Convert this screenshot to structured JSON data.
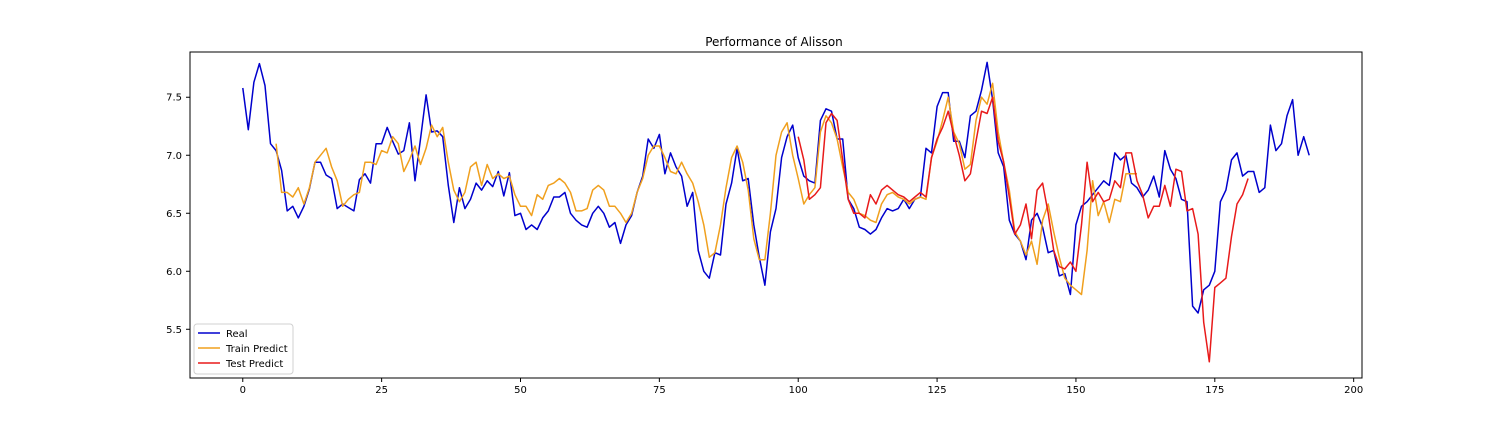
{
  "chart_data": {
    "type": "line",
    "title": "Performance of Alisson",
    "xlabel": "",
    "ylabel": "",
    "xlim": [
      -9.5,
      201.5
    ],
    "ylim": [
      5.08,
      7.89
    ],
    "xticks": [
      0,
      25,
      50,
      75,
      100,
      125,
      150,
      175,
      200
    ],
    "xtick_labels": [
      "0",
      "25",
      "50",
      "75",
      "100",
      "125",
      "150",
      "175",
      "200"
    ],
    "yticks": [
      5.5,
      6.0,
      6.5,
      7.0,
      7.5
    ],
    "ytick_labels": [
      "5.5",
      "6.0",
      "6.5",
      "7.0",
      "7.5"
    ],
    "grid": false,
    "legend_position": "lower-left",
    "series": [
      {
        "name": "Real",
        "color": "#0000cd",
        "x_start": 0,
        "values": [
          7.58,
          7.22,
          7.63,
          7.79,
          7.6,
          7.1,
          7.04,
          6.87,
          6.52,
          6.56,
          6.46,
          6.56,
          6.71,
          6.94,
          6.94,
          6.83,
          6.8,
          6.54,
          6.58,
          6.55,
          6.52,
          6.79,
          6.84,
          6.76,
          7.1,
          7.1,
          7.24,
          7.12,
          7.01,
          7.04,
          7.28,
          6.78,
          7.14,
          7.52,
          7.2,
          7.21,
          7.16,
          6.74,
          6.42,
          6.72,
          6.54,
          6.62,
          6.76,
          6.7,
          6.78,
          6.73,
          6.86,
          6.65,
          6.85,
          6.48,
          6.5,
          6.36,
          6.4,
          6.36,
          6.46,
          6.52,
          6.64,
          6.64,
          6.68,
          6.5,
          6.44,
          6.4,
          6.38,
          6.5,
          6.56,
          6.5,
          6.38,
          6.42,
          6.24,
          6.4,
          6.48,
          6.68,
          6.82,
          7.14,
          7.06,
          7.18,
          6.84,
          7.02,
          6.9,
          6.82,
          6.56,
          6.68,
          6.18,
          6.0,
          5.94,
          6.16,
          6.14,
          6.58,
          6.76,
          7.06,
          6.78,
          6.8,
          6.4,
          6.12,
          5.88,
          6.34,
          6.54,
          6.98,
          7.16,
          7.26,
          6.98,
          6.82,
          6.78,
          6.76,
          7.3,
          7.4,
          7.38,
          7.14,
          7.14,
          6.62,
          6.54,
          6.38,
          6.36,
          6.32,
          6.36,
          6.46,
          6.54,
          6.52,
          6.54,
          6.62,
          6.54,
          6.62,
          6.64,
          7.06,
          7.02,
          7.42,
          7.54,
          7.54,
          7.12,
          7.12,
          6.98,
          7.34,
          7.38,
          7.56,
          7.8,
          7.48,
          7.02,
          6.9,
          6.44,
          6.32,
          6.26,
          6.1,
          6.44,
          6.5,
          6.38,
          6.16,
          6.18,
          5.96,
          5.98,
          5.8,
          6.4,
          6.56,
          6.6,
          6.66,
          6.72,
          6.78,
          6.74,
          7.02,
          6.96,
          7.0,
          6.76,
          6.72,
          6.64,
          6.7,
          6.82,
          6.64,
          7.04,
          6.88,
          6.8,
          6.62,
          6.6,
          5.7,
          5.64,
          5.84,
          5.88,
          6.0,
          6.6,
          6.7,
          6.96,
          7.02,
          6.82,
          6.86,
          6.86,
          6.68,
          6.72,
          7.26,
          7.04,
          7.1,
          7.34,
          7.48,
          7.0,
          7.16,
          7.0
        ]
      },
      {
        "name": "Train Predict",
        "color": "#f0a01e",
        "x_start": 6,
        "values": [
          7.1,
          6.68,
          6.68,
          6.64,
          6.72,
          6.58,
          6.72,
          6.94,
          7.0,
          7.06,
          6.9,
          6.78,
          6.56,
          6.62,
          6.66,
          6.68,
          6.94,
          6.94,
          6.92,
          7.04,
          7.02,
          7.16,
          7.1,
          6.86,
          6.96,
          7.08,
          6.92,
          7.06,
          7.26,
          7.16,
          7.24,
          6.94,
          6.7,
          6.6,
          6.68,
          6.9,
          6.94,
          6.74,
          6.92,
          6.8,
          6.84,
          6.8,
          6.82,
          6.66,
          6.56,
          6.56,
          6.48,
          6.66,
          6.62,
          6.74,
          6.76,
          6.8,
          6.76,
          6.68,
          6.52,
          6.52,
          6.54,
          6.7,
          6.74,
          6.7,
          6.56,
          6.56,
          6.5,
          6.42,
          6.5,
          6.68,
          6.8,
          7.0,
          7.08,
          7.08,
          6.98,
          6.86,
          6.84,
          6.94,
          6.84,
          6.76,
          6.6,
          6.4,
          6.12,
          6.16,
          6.4,
          6.72,
          6.98,
          7.08,
          6.94,
          6.7,
          6.28,
          6.1,
          6.1,
          6.5,
          7.0,
          7.2,
          7.28,
          7.0,
          6.8,
          6.58,
          6.66,
          6.72,
          7.2,
          7.34,
          7.28,
          7.14,
          6.9,
          6.68,
          6.62,
          6.5,
          6.48,
          6.44,
          6.42,
          6.58,
          6.66,
          6.68,
          6.64,
          6.62,
          6.58,
          6.62,
          6.64,
          6.62,
          6.98,
          7.12,
          7.3,
          7.5,
          7.2,
          7.1,
          6.88,
          6.92,
          7.3,
          7.5,
          7.44,
          7.62,
          7.2,
          6.94,
          6.7,
          6.34,
          6.26,
          6.14,
          6.26,
          6.06,
          6.44,
          6.58,
          6.34,
          6.12,
          5.94,
          5.88,
          5.84,
          5.8,
          6.18,
          6.78,
          6.48,
          6.6,
          6.42,
          6.62,
          6.6,
          6.84,
          6.84,
          6.84
        ]
      },
      {
        "name": "Test Predict",
        "color": "#e81a1a",
        "x_start": 100,
        "values": [
          7.16,
          6.96,
          6.62,
          6.66,
          6.72,
          7.28,
          7.36,
          7.3,
          6.96,
          6.62,
          6.5,
          6.5,
          6.46,
          6.66,
          6.58,
          6.7,
          6.74,
          6.7,
          6.66,
          6.64,
          6.6,
          6.64,
          6.68,
          6.64,
          6.98,
          7.14,
          7.24,
          7.38,
          7.18,
          7.0,
          6.78,
          6.84,
          7.12,
          7.38,
          7.36,
          7.5,
          7.12,
          6.94,
          6.64,
          6.32,
          6.4,
          6.58,
          6.28,
          6.7,
          6.76,
          6.5,
          6.18,
          6.04,
          6.02,
          6.08,
          6.0,
          6.4,
          6.94,
          6.6,
          6.68,
          6.6,
          6.62,
          6.78,
          6.72,
          7.02,
          7.02,
          6.78,
          6.66,
          6.46,
          6.56,
          6.56,
          6.74,
          6.56,
          6.88,
          6.86,
          6.52,
          6.54,
          6.32,
          5.56,
          5.22,
          5.86,
          5.9,
          5.94,
          6.3,
          6.58,
          6.66,
          6.8
        ]
      }
    ]
  }
}
